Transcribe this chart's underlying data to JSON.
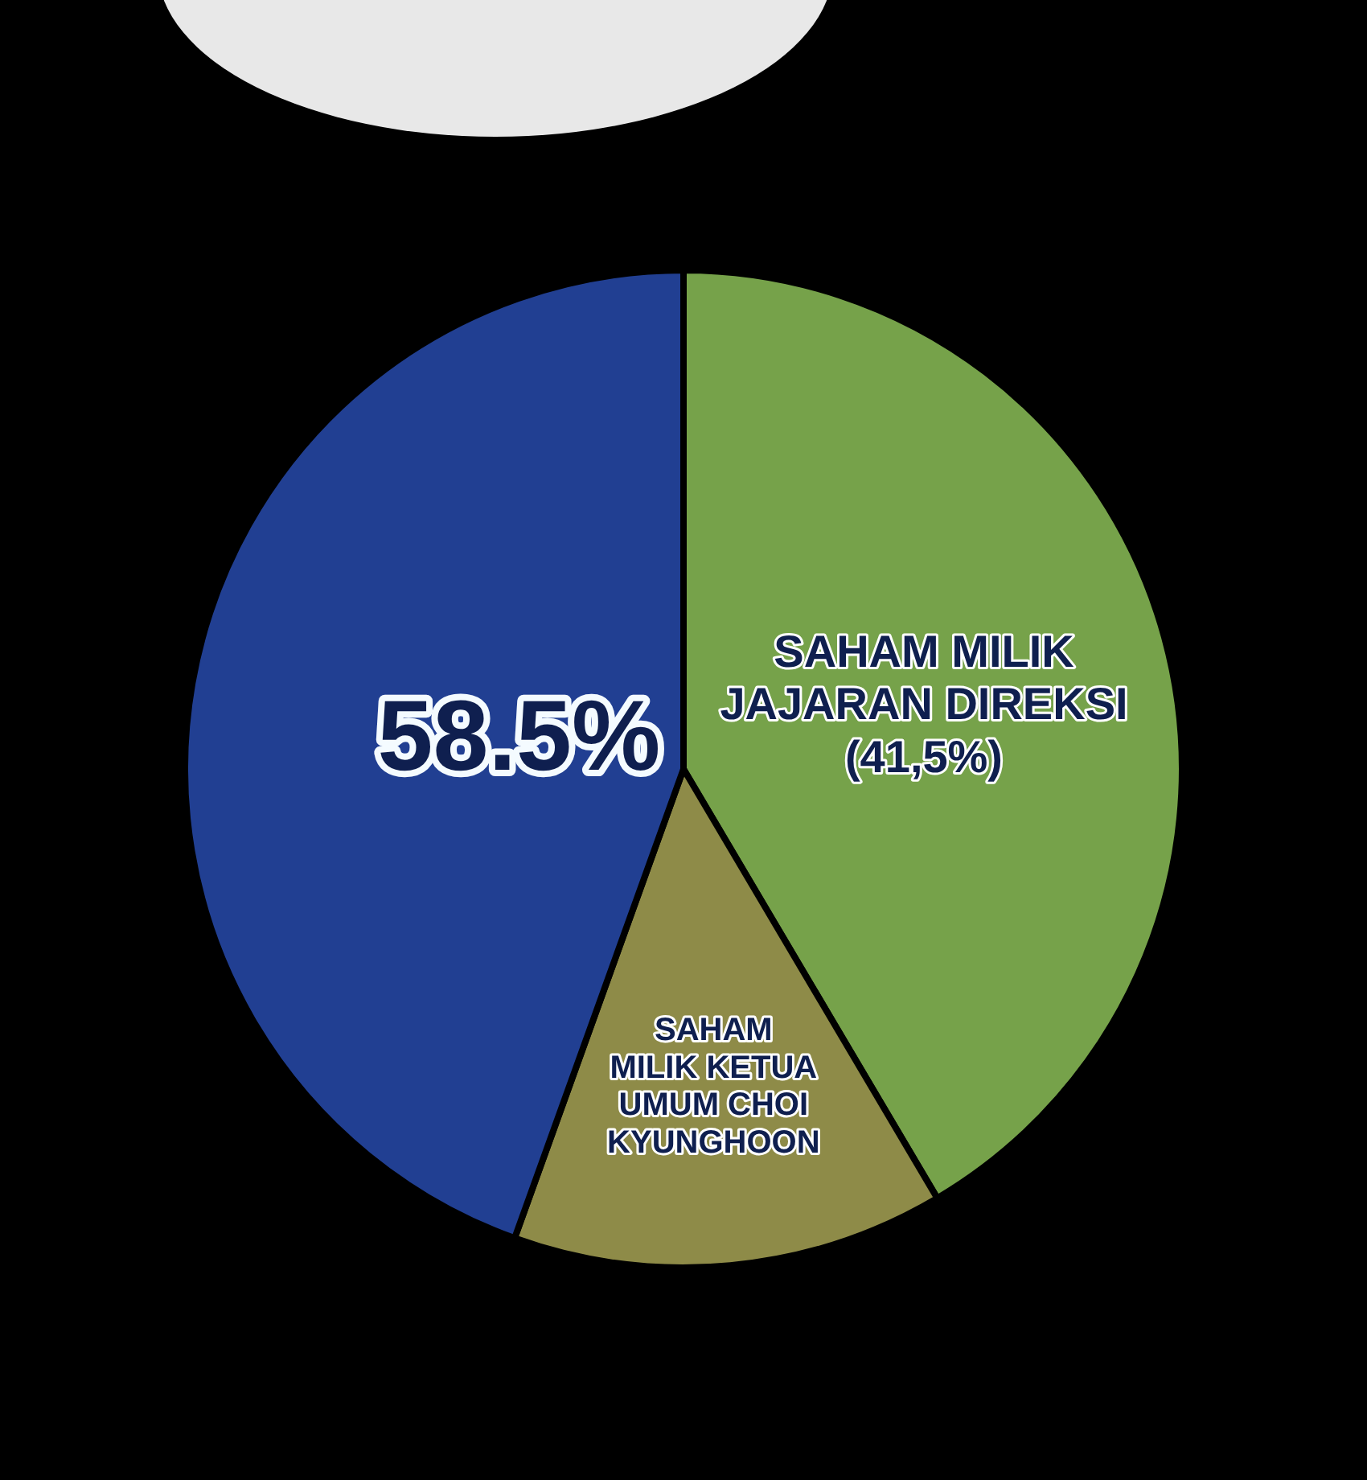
{
  "chart_data": {
    "type": "pie",
    "categories": [
      "SAHAM MILIK\nJAJARAN DIREKSI",
      "SAHAM\nMILIK KETUA\nUMUM CHOI\nKYUNGHOON",
      null
    ],
    "values": [
      41.5,
      14,
      44.5
    ],
    "colors": [
      "#76a24a",
      "#8e8b48",
      "#213f92"
    ],
    "value_labels": [
      "(41,5%)",
      null,
      null
    ],
    "annotations": [
      "58.5%"
    ]
  }
}
